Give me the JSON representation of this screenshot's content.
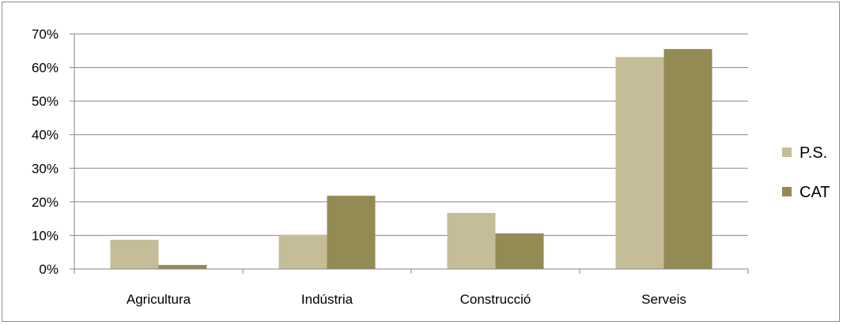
{
  "chart_data": {
    "type": "bar",
    "categories": [
      "Agricultura",
      "Indústria",
      "Construcció",
      "Serveis"
    ],
    "series": [
      {
        "name": "P.S.",
        "values": [
          8.7,
          10.2,
          16.7,
          63.1
        ],
        "color": "#c4bd97"
      },
      {
        "name": "CAT",
        "values": [
          1.2,
          21.8,
          10.6,
          65.5
        ],
        "color": "#948a54"
      }
    ],
    "ylim": [
      0,
      70
    ],
    "yticks": [
      0,
      10,
      20,
      30,
      40,
      50,
      60,
      70
    ],
    "ytick_labels": [
      "0%",
      "10%",
      "20%",
      "30%",
      "40%",
      "50%",
      "60%",
      "70%"
    ],
    "grid": true,
    "legend_position": "right",
    "gridline_color": "#868686"
  }
}
